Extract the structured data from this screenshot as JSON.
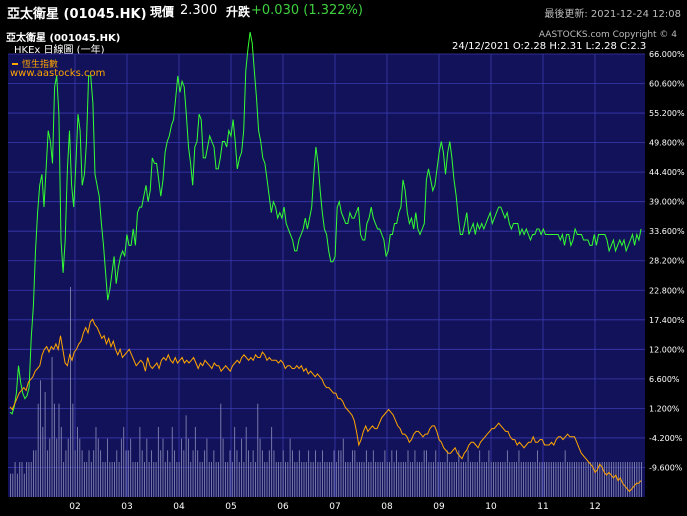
{
  "header": {
    "title": "亞太衛星 (01045.HK)",
    "price_label": "現價",
    "price": "2.300",
    "change_label": "升跌",
    "change": "+0.030 (1.322%)",
    "updated": "最後更新: 2021-12-24 12:08"
  },
  "chart_header": {
    "symbol": "亞太衛星 (001045.HK)",
    "period": "HKEx  日線圖 (一年)",
    "copyright": "AASTOCKS.com Copyright © 4",
    "ohlc": "24/12/2021   O:2.28  H:2.31  L:2.28  C:2.3"
  },
  "legend": {
    "index_name": "恆生指數",
    "site": "www.aastocks.com"
  },
  "colors": {
    "stock": "#33ff33",
    "index": "#ffa500",
    "volume": "#8080b0",
    "plot_bg": "#12125a",
    "grid": "#3a3ab0"
  },
  "chart_data": {
    "type": "line",
    "x_ticks": [
      "02",
      "03",
      "04",
      "05",
      "06",
      "07",
      "08",
      "09",
      "10",
      "11",
      "12"
    ],
    "y_ticks": [
      "66.000%",
      "60.600%",
      "55.200%",
      "49.800%",
      "44.400%",
      "39.000%",
      "33.600%",
      "28.200%",
      "22.800%",
      "17.400%",
      "12.000%",
      "6.600%",
      "1.200%",
      "-4.200%",
      "-9.600%"
    ],
    "ylim": [
      -15,
      66
    ],
    "series": [
      {
        "name": "亞太衛星 (001045.HK)",
        "values": [
          0.5,
          0.2,
          1.5,
          4,
          9,
          6,
          4,
          3,
          3.5,
          5,
          14,
          20,
          30,
          37,
          42,
          44,
          38,
          45,
          52,
          50,
          46,
          60,
          62,
          55,
          32,
          26,
          32,
          45,
          52,
          42,
          38,
          46,
          55,
          52,
          42,
          44,
          50,
          62,
          62,
          57,
          44,
          42,
          40,
          35,
          31,
          26,
          21,
          23,
          26,
          29,
          24,
          27,
          29,
          30,
          29,
          33,
          31,
          31,
          34,
          31,
          37,
          38,
          38,
          40,
          42,
          39,
          41,
          47,
          46,
          46,
          43,
          40,
          43,
          48,
          50,
          51,
          53,
          54,
          58,
          62,
          59,
          61,
          60,
          55,
          49,
          46,
          42,
          49,
          50,
          55,
          54,
          47,
          47,
          49,
          51,
          50,
          49,
          45,
          45,
          47,
          50,
          50,
          49,
          52,
          51,
          54,
          50,
          45,
          47,
          48,
          52,
          63,
          67,
          70,
          68,
          63,
          58,
          52,
          50,
          47,
          46,
          43,
          40,
          37,
          39,
          38,
          36,
          37,
          36,
          38,
          35,
          34,
          33,
          32,
          30,
          30,
          32,
          33,
          34,
          36,
          34,
          36,
          38,
          44,
          49,
          46,
          41,
          37,
          34,
          33,
          30,
          28,
          28,
          29,
          38,
          39,
          37,
          36,
          35,
          35,
          37,
          36,
          36,
          37,
          38,
          33,
          32,
          32,
          35,
          36,
          38,
          36,
          35,
          34,
          34,
          33,
          32,
          29,
          30,
          33,
          33,
          35,
          35,
          37,
          38,
          43,
          41,
          37,
          35,
          36,
          34,
          37,
          34,
          33,
          34,
          35,
          43,
          45,
          43,
          41,
          42,
          45,
          48,
          50,
          48,
          44,
          48,
          50,
          47,
          43,
          40,
          36,
          33,
          33,
          35,
          37,
          33,
          34,
          35,
          33,
          35,
          34,
          35,
          34,
          35,
          36,
          37,
          35,
          36,
          37,
          38,
          38,
          37,
          36,
          37,
          35,
          34,
          35,
          35,
          35,
          33,
          34,
          33,
          34,
          33,
          32,
          33,
          33,
          34,
          34,
          33,
          34,
          33,
          33,
          33,
          33,
          33,
          33,
          33,
          32,
          33,
          31,
          33,
          33,
          31,
          32,
          34,
          33,
          33,
          33,
          32,
          32,
          32,
          31,
          31,
          33,
          31,
          33,
          33,
          33,
          33,
          32,
          30,
          31,
          32,
          30,
          31,
          32,
          31,
          32,
          30,
          31,
          32,
          33,
          31,
          33,
          32,
          34
        ]
      },
      {
        "name": "恆生指數",
        "values": [
          1.5,
          1,
          2,
          3,
          4,
          4.5,
          5,
          4.5,
          6,
          6.5,
          7,
          8,
          8.5,
          9,
          11,
          12,
          12.5,
          11.5,
          12.5,
          12,
          13,
          12,
          14.5,
          12,
          9.5,
          9,
          11,
          10,
          11.5,
          12,
          13,
          13.5,
          15,
          16,
          15,
          17,
          17.5,
          16.5,
          16,
          15,
          14,
          14.5,
          13,
          14,
          12.5,
          13.5,
          12,
          11,
          12,
          10.5,
          11,
          11.5,
          12,
          11,
          10,
          9,
          9.5,
          10,
          9.5,
          8,
          10.5,
          9,
          8.5,
          9,
          9.5,
          8.5,
          10,
          10.5,
          10,
          11,
          10,
          9.5,
          10.5,
          9.5,
          10,
          10.5,
          9.5,
          10,
          9.5,
          10,
          10.5,
          9.5,
          8.5,
          9.5,
          9,
          10,
          9.5,
          9,
          8.5,
          9.5,
          9,
          9,
          8,
          8.5,
          9,
          8.5,
          8,
          9,
          9.5,
          10,
          9.5,
          10.5,
          11,
          10.5,
          10,
          10.5,
          10,
          11,
          10.5,
          10.5,
          11.5,
          11,
          10,
          10.5,
          10,
          10,
          10,
          9.5,
          10,
          9.5,
          8.5,
          9,
          9,
          8.5,
          8.5,
          9,
          8.5,
          9,
          8,
          8.5,
          7.5,
          8,
          7.5,
          7,
          7.5,
          7,
          6.5,
          5.5,
          5,
          5,
          4.5,
          4,
          4,
          3,
          3,
          2.5,
          1.5,
          1,
          0.5,
          0,
          -1,
          -3,
          -5.5,
          -4.5,
          -3,
          -2,
          -3,
          -2.5,
          -2,
          -2.5,
          -2.5,
          -1.5,
          -0.5,
          0,
          0.5,
          1,
          0.5,
          0,
          -1,
          -2,
          -2.5,
          -3.5,
          -3.5,
          -4,
          -5,
          -4.5,
          -3.5,
          -3,
          -3,
          -3.5,
          -4,
          -3.5,
          -3.5,
          -2.5,
          -2,
          -2,
          -3,
          -4.5,
          -5,
          -6,
          -6.5,
          -7,
          -7,
          -6.5,
          -6,
          -7,
          -7.5,
          -8,
          -7,
          -6.5,
          -5.5,
          -5,
          -5,
          -5.5,
          -6,
          -5,
          -4.5,
          -4,
          -3.5,
          -3,
          -2.5,
          -2.5,
          -2,
          -1.5,
          -2,
          -2.5,
          -3,
          -3,
          -4,
          -4.5,
          -4.5,
          -5.5,
          -5,
          -5.5,
          -6,
          -5.5,
          -5,
          -5,
          -4,
          -5,
          -5,
          -4.5,
          -4.5,
          -5.5,
          -5.5,
          -5.5,
          -5,
          -5.5,
          -4.5,
          -4,
          -4,
          -4.5,
          -4,
          -3.5,
          -4,
          -4,
          -4,
          -5,
          -6,
          -7,
          -7.5,
          -8,
          -8.5,
          -9,
          -9.5,
          -10.5,
          -10,
          -9,
          -9.5,
          -10.5,
          -11,
          -10.5,
          -11,
          -11.5,
          -11,
          -12,
          -11.5,
          -12.5,
          -13,
          -13.5,
          -14,
          -13.5,
          -13,
          -12.5,
          -12.5,
          -12
        ]
      }
    ],
    "volume": [
      2,
      2,
      3,
      2,
      3,
      3,
      2,
      3,
      3,
      3,
      4,
      4,
      8,
      10,
      6,
      9,
      4,
      5,
      12,
      8,
      5,
      8,
      6,
      3,
      4,
      5,
      18,
      8,
      4,
      6,
      5,
      4,
      3,
      3,
      4,
      3,
      4,
      6,
      5,
      4,
      3,
      3,
      5,
      3,
      3,
      3,
      4,
      3,
      5,
      6,
      4,
      4,
      5,
      3,
      3,
      3,
      6,
      4,
      3,
      5,
      3,
      4,
      3,
      3,
      6,
      4,
      5,
      3,
      4,
      3,
      6,
      4,
      3,
      3,
      5,
      4,
      7,
      5,
      3,
      4,
      6,
      4,
      3,
      3,
      4,
      5,
      3,
      3,
      4,
      3,
      3,
      8,
      5,
      3,
      3,
      4,
      3,
      6,
      4,
      3,
      5,
      3,
      6,
      4,
      3,
      4,
      3,
      8,
      5,
      4,
      3,
      3,
      4,
      6,
      4,
      3,
      3,
      3,
      4,
      3,
      3,
      5,
      4,
      3,
      3,
      4,
      3,
      3,
      3,
      4,
      3,
      3,
      4,
      3,
      3,
      4,
      3,
      3,
      3,
      3,
      4,
      3,
      4,
      4,
      5,
      3,
      3,
      3,
      4,
      4,
      3,
      3,
      3,
      3,
      4,
      3,
      3,
      4,
      3,
      3,
      3,
      3,
      4,
      3,
      3,
      4,
      3,
      4,
      3,
      3,
      3,
      3,
      4,
      3,
      3,
      4,
      3,
      3,
      3,
      4,
      4,
      3,
      3,
      3,
      4,
      3,
      3,
      3,
      3,
      4,
      3,
      3,
      3,
      3,
      4,
      3,
      3,
      3,
      4,
      3,
      3,
      3,
      3,
      4,
      3,
      3,
      3,
      4,
      3,
      3,
      3,
      3,
      3,
      3,
      3,
      4,
      3,
      3,
      3,
      3,
      4,
      3,
      3,
      3,
      3,
      3,
      3,
      3,
      4,
      3,
      3,
      3,
      3,
      3,
      3,
      3,
      3,
      3,
      3,
      3,
      4,
      3,
      3,
      3,
      3,
      3,
      3,
      3,
      3,
      3,
      3,
      3,
      3,
      3,
      3,
      3,
      3,
      3,
      3,
      3,
      3,
      3,
      3,
      3,
      3,
      3,
      3,
      3,
      3,
      3,
      3,
      3,
      3,
      3
    ]
  }
}
